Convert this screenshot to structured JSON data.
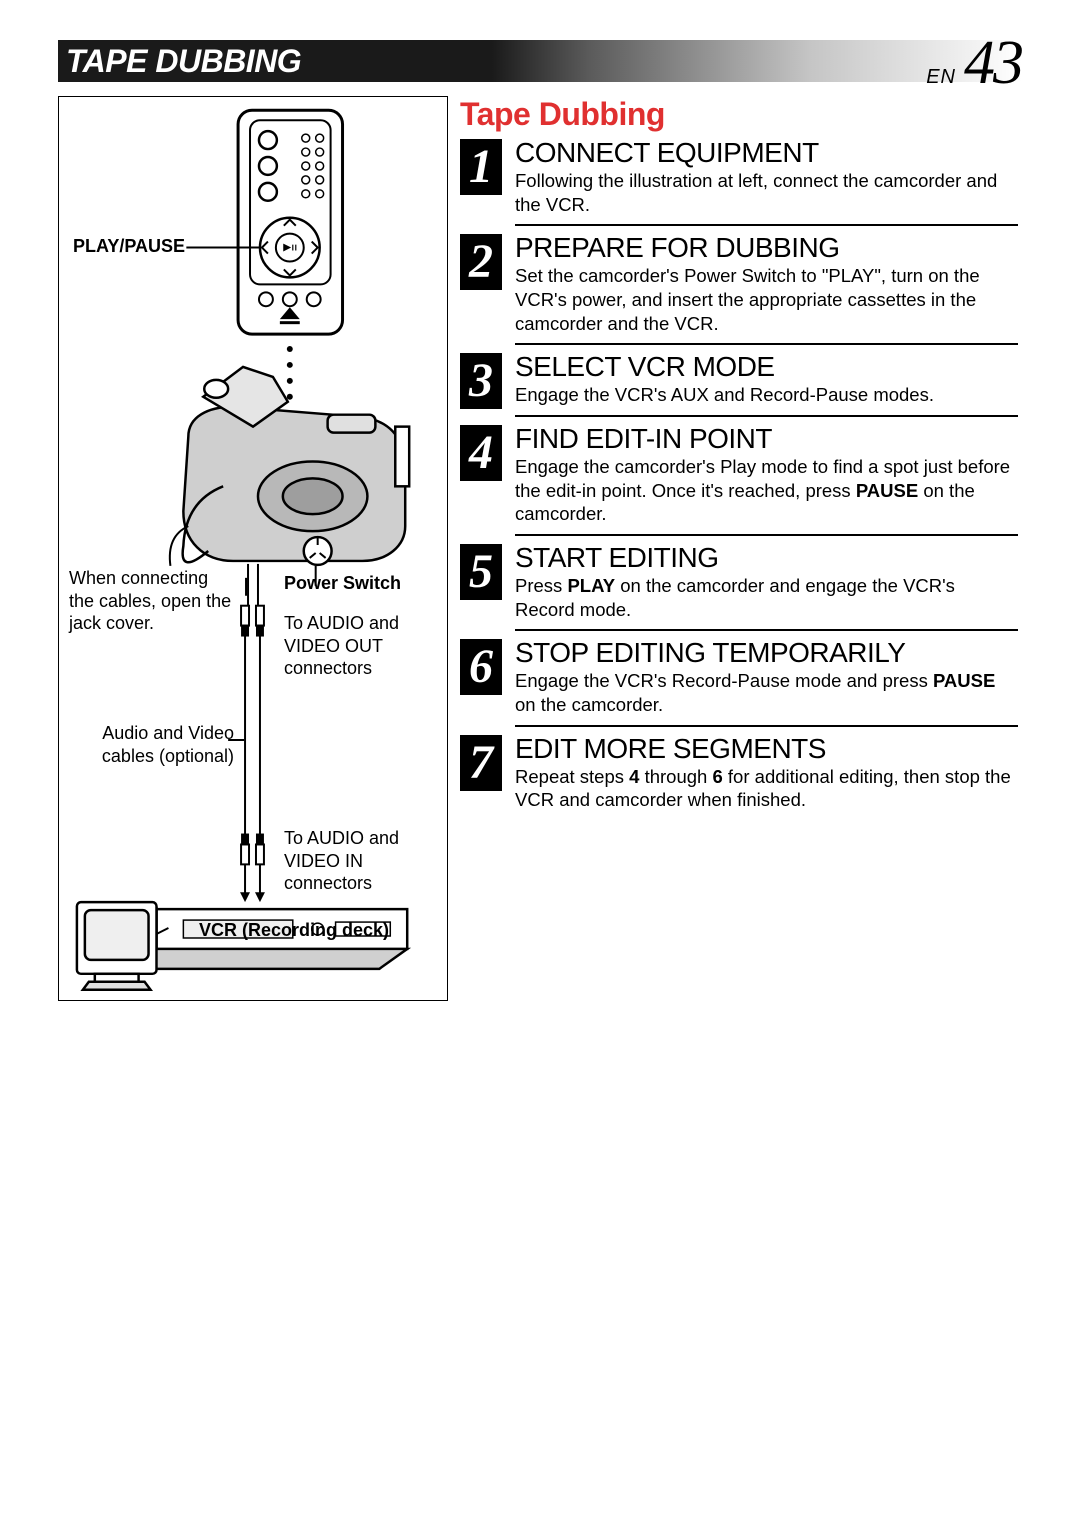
{
  "header": {
    "title": "TAPE DUBBING",
    "lang": "EN",
    "page": "43"
  },
  "section_title": "Tape Dubbing",
  "steps": [
    {
      "num": "1",
      "head": "CONNECT EQUIPMENT",
      "body": "Following the illustration at left, connect the camcorder and the VCR."
    },
    {
      "num": "2",
      "head": "PREPARE FOR DUBBING",
      "body": "Set the camcorder's Power Switch to \"PLAY\", turn on the VCR's power, and insert the appropriate cassettes in the camcorder and the VCR."
    },
    {
      "num": "3",
      "head": "SELECT VCR MODE",
      "body": "Engage the VCR's AUX and Record-Pause modes."
    },
    {
      "num": "4",
      "head": "FIND EDIT-IN POINT",
      "body": "Engage the camcorder's Play mode to find a spot just before the edit-in point. Once it's reached, press <b>PAUSE</b> on the camcorder."
    },
    {
      "num": "5",
      "head": "START EDITING",
      "body": "Press <b>PLAY</b> on the camcorder and engage the VCR's Record mode."
    },
    {
      "num": "6",
      "head": "STOP EDITING TEMPORARILY",
      "body": "Engage the VCR's Record-Pause mode and press <b>PAUSE</b> on the camcorder."
    },
    {
      "num": "7",
      "head": "EDIT MORE SEGMENTS",
      "body": "Repeat steps <b>4</b> through <b>6</b> for additional editing, then stop the VCR and camcorder when finished."
    }
  ],
  "diagram": {
    "play_pause": "PLAY/PAUSE",
    "power_switch": "Power Switch",
    "jack_cover": "When connecting the cables, open the jack cover.",
    "audio_video_out": "To AUDIO and VIDEO OUT connectors",
    "audio_video_cables": "Audio and Video cables (optional)",
    "audio_video_in": "To AUDIO and VIDEO IN connectors",
    "vcr": "VCR (Recording deck)"
  },
  "colors": {
    "accent": "#e03030",
    "text": "#000000",
    "bg": "#ffffff"
  }
}
